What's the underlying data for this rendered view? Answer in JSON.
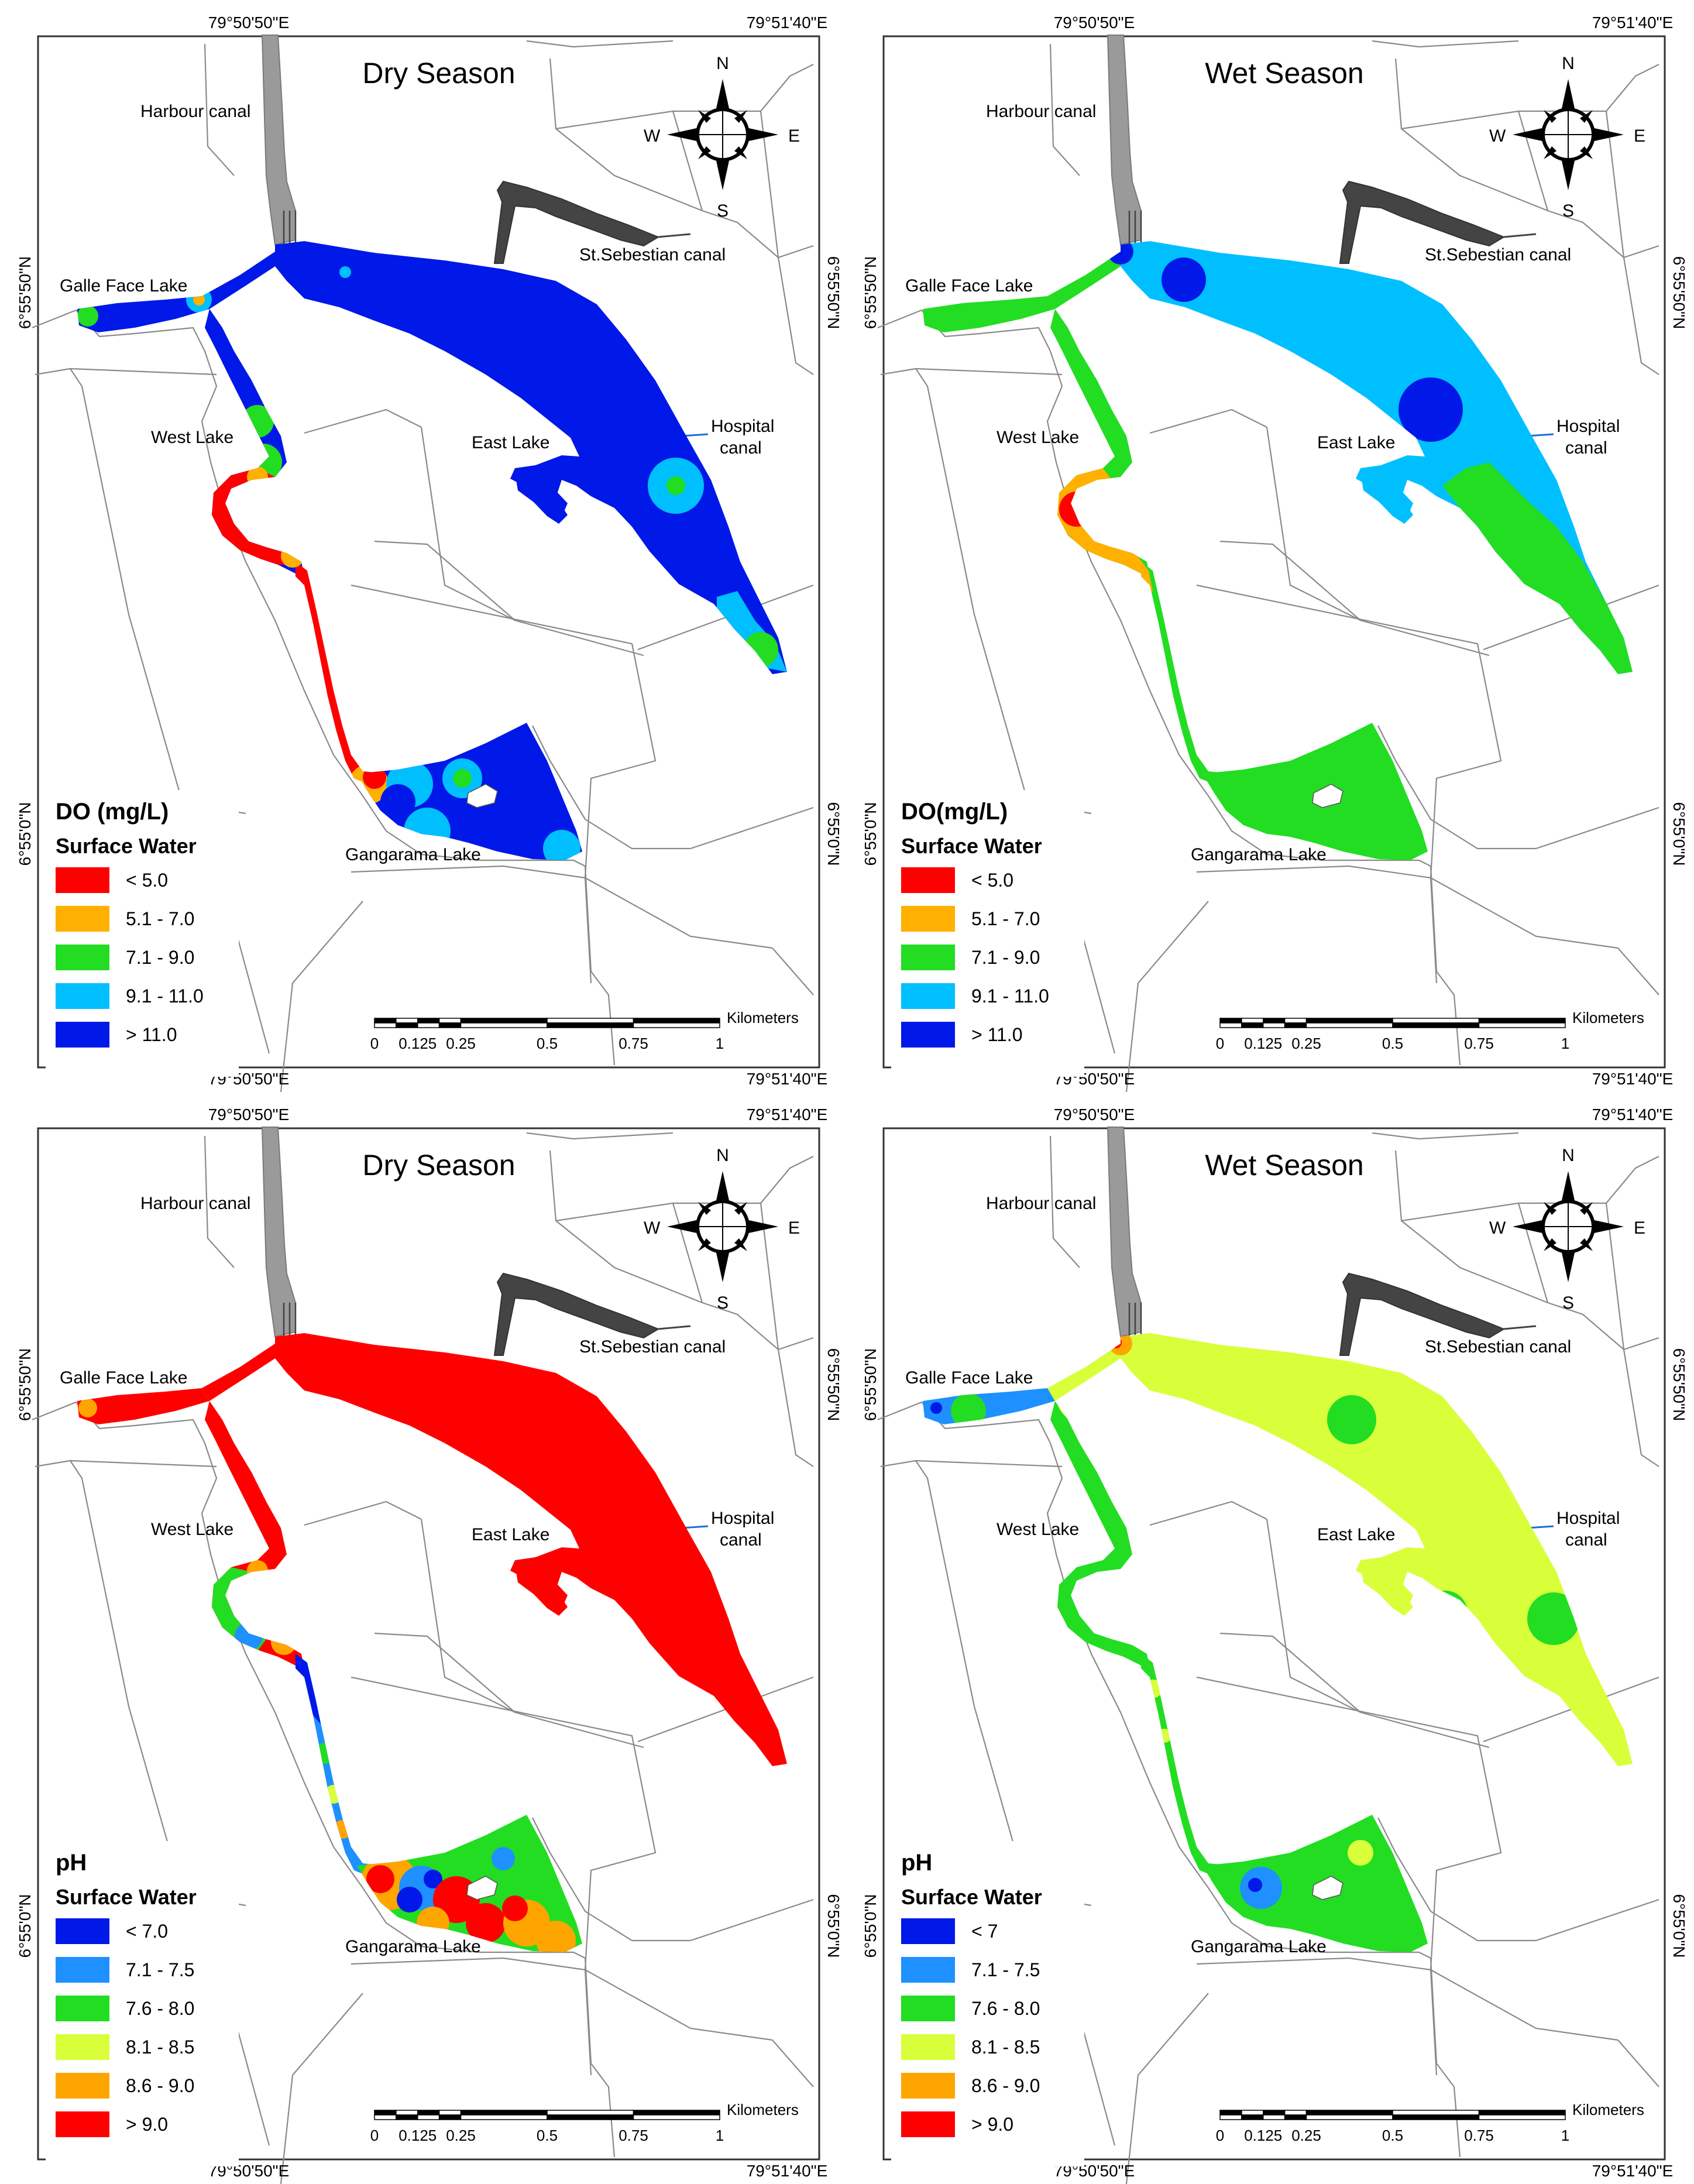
{
  "panels": [
    {
      "title": "Dry Season",
      "legend_title": "DO (mg/L)",
      "legend_subtitle": "Surface Water",
      "legend": [
        {
          "label": "< 5.0",
          "color": "#ff0000"
        },
        {
          "label": "5.1 - 7.0",
          "color": "#ffb000"
        },
        {
          "label": "7.1 - 9.0",
          "color": "#22dd22"
        },
        {
          "label": "9.1 - 11.0",
          "color": "#00bfff"
        },
        {
          "label": "> 11.0",
          "color": "#0018e8"
        }
      ]
    },
    {
      "title": "Wet Season",
      "legend_title": "DO(mg/L)",
      "legend_subtitle": "Surface Water",
      "legend": [
        {
          "label": "< 5.0",
          "color": "#ff0000"
        },
        {
          "label": "5.1 - 7.0",
          "color": "#ffb000"
        },
        {
          "label": "7.1 - 9.0",
          "color": "#22dd22"
        },
        {
          "label": "9.1 - 11.0",
          "color": "#00bfff"
        },
        {
          "label": "> 11.0",
          "color": "#0018e8"
        }
      ]
    },
    {
      "title": "Dry Season",
      "legend_title": "pH",
      "legend_subtitle": "Surface Water",
      "legend": [
        {
          "label": "< 7.0",
          "color": "#0018e8"
        },
        {
          "label": "7.1 - 7.5",
          "color": "#1e90ff"
        },
        {
          "label": "7.6 - 8.0",
          "color": "#22dd22"
        },
        {
          "label": "8.1 - 8.5",
          "color": "#d8ff3a"
        },
        {
          "label": "8.6 - 9.0",
          "color": "#ffa500"
        },
        {
          "label": "> 9.0",
          "color": "#ff0000"
        }
      ]
    },
    {
      "title": "Wet Season",
      "legend_title": "pH",
      "legend_subtitle": "Surface Water",
      "legend": [
        {
          "label": "< 7",
          "color": "#0018e8"
        },
        {
          "label": "7.1 - 7.5",
          "color": "#1e90ff"
        },
        {
          "label": "7.6 - 8.0",
          "color": "#22dd22"
        },
        {
          "label": "8.1 - 8.5",
          "color": "#d8ff3a"
        },
        {
          "label": "8.6 - 9.0",
          "color": "#ffa500"
        },
        {
          "label": "> 9.0",
          "color": "#ff0000"
        }
      ]
    }
  ],
  "map_labels": {
    "harbour_canal": "Harbour canal",
    "st_sebastian_canal": "St.Sebestian canal",
    "galle_face_lake": "Galle Face Lake",
    "west_lake": "West Lake",
    "east_lake": "East Lake",
    "hospital_canal_line1": "Hospital",
    "hospital_canal_line2": "canal",
    "gangarama_lake": "Gangarama Lake"
  },
  "coordinates": {
    "lon_left": "79°50'50\"E",
    "lon_right": "79°51'40\"E",
    "lat_top": "6°55'50\"N",
    "lat_bottom": "6°55'0\"N"
  },
  "compass": {
    "n": "N",
    "s": "S",
    "e": "E",
    "w": "W"
  },
  "scale": {
    "unit": "Kilometers",
    "ticks": [
      "0",
      "0.125",
      "0.25",
      "0.5",
      "0.75",
      "1"
    ]
  }
}
